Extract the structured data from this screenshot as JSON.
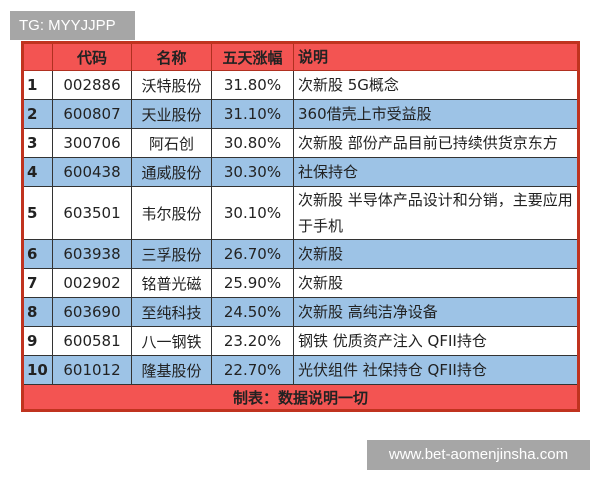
{
  "tag": "TG: MYYJJPP",
  "watermark": "www.bet-aomenjinsha.com",
  "headers": [
    "",
    "代码",
    "名称",
    "五天涨幅",
    "说明"
  ],
  "rows": [
    [
      "1",
      "002886",
      "沃特股份",
      "31.80%",
      "次新股 5G概念"
    ],
    [
      "2",
      "600807",
      "天业股份",
      "31.10%",
      "360借壳上市受益股"
    ],
    [
      "3",
      "300706",
      "阿石创",
      "30.80%",
      "次新股 部份产品目前已持续供货京东方"
    ],
    [
      "4",
      "600438",
      "通威股份",
      "30.30%",
      " 社保持仓"
    ],
    [
      "5",
      "603501",
      "韦尔股份",
      "30.10%",
      "次新股 半导体产品设计和分销，主要应用于手机"
    ],
    [
      "6",
      "603938",
      "三孚股份",
      "26.70%",
      "次新股"
    ],
    [
      "7",
      "002902",
      "铭普光磁",
      "25.90%",
      "次新股"
    ],
    [
      "8",
      "603690",
      "至纯科技",
      "24.50%",
      "次新股 高纯洁净设备"
    ],
    [
      "9",
      "600581",
      "八一钢铁",
      "23.20%",
      "钢铁 优质资产注入 QFII持仓"
    ],
    [
      "10",
      "601012",
      "隆基股份",
      "22.70%",
      "光伏组件 社保持仓 QFII持仓"
    ]
  ],
  "footer": "制表：数据说明一切",
  "colors": {
    "header": "#f35452",
    "highlight_row": "#9dc3e6",
    "border": "#c0331f"
  }
}
